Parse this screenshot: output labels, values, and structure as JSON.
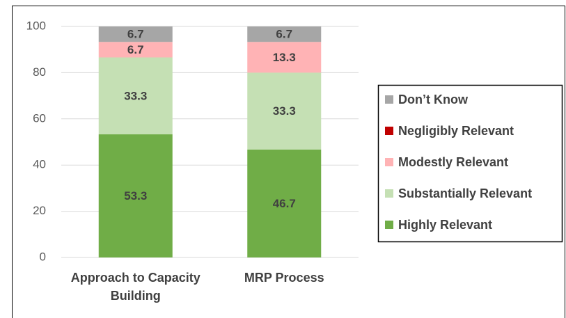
{
  "chart_data": {
    "type": "stacked_bar",
    "categories": [
      "Approach to Capacity Building",
      "MRP Process"
    ],
    "series": [
      {
        "name": "Highly Relevant",
        "color": "#70ad47",
        "values": [
          53.3,
          46.7
        ]
      },
      {
        "name": "Substantially Relevant",
        "color": "#c5e0b4",
        "values": [
          33.3,
          33.3
        ]
      },
      {
        "name": "Modestly Relevant",
        "color": "#ffb3b5",
        "values": [
          6.7,
          13.3
        ]
      },
      {
        "name": "Negligibly Relevant",
        "color": "#c00000",
        "values": [
          0,
          0
        ]
      },
      {
        "name": "Don’t Know",
        "color": "#a6a6a6",
        "values": [
          6.7,
          6.7
        ]
      }
    ],
    "ylim": [
      0,
      100
    ],
    "yticks": [
      0,
      20,
      40,
      60,
      80,
      100
    ],
    "grid": true,
    "legend": "right"
  }
}
